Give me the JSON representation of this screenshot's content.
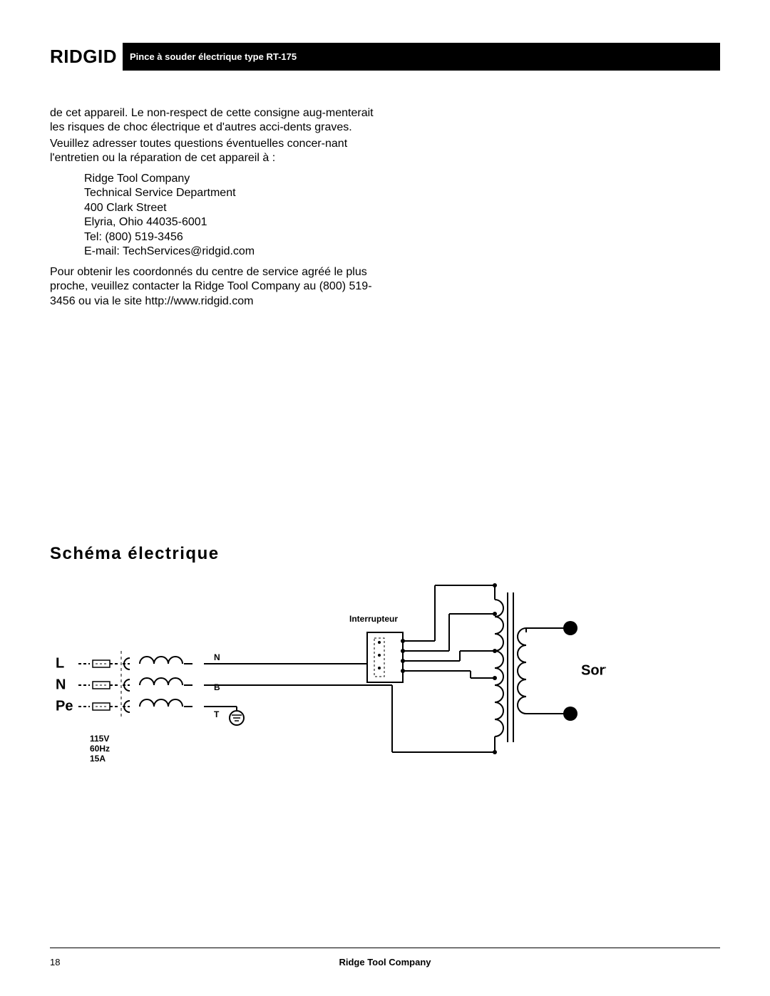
{
  "header": {
    "logo": "RIDGID",
    "title": "Pince à souder électrique type RT-175"
  },
  "body": {
    "para1": "de cet appareil. Le non-respect de cette consigne aug-menterait les risques de choc électrique et d'autres acci-dents graves.",
    "para2": "Veuillez adresser toutes questions éventuelles concer-nant l'entretien ou la réparation de cet appareil à :",
    "contact": {
      "l1": "Ridge Tool Company",
      "l2": "Technical Service Department",
      "l3": "400 Clark Street",
      "l4": "Elyria, Ohio 44035-6001",
      "l5": "Tel: (800) 519-3456",
      "l6": "E-mail: TechServices@ridgid.com"
    },
    "para3": "Pour obtenir les coordonnés du centre de service agréé le plus proche, veuillez contacter la Ridge Tool Company au (800) 519-3456 ou via le site http://www.ridgid.com"
  },
  "diagram": {
    "title": "Schéma électrique",
    "labels": {
      "switch": "Interrupteur",
      "L": "L",
      "N": "N",
      "Pe": "Pe",
      "wire_N": "N",
      "wire_B": "B",
      "wire_T": "T",
      "output": "Sortie",
      "specs_l1": "115V",
      "specs_l2": "60Hz",
      "specs_l3": "15A"
    },
    "style": {
      "stroke": "#000000",
      "stroke_width": 2,
      "font_family": "Arial",
      "title_fontsize": 24,
      "label_fontsize_large": 20,
      "label_fontsize_small": 12,
      "output_fontsize": 20,
      "dot_radius": 3,
      "output_dot_radius": 10,
      "background": "#ffffff"
    }
  },
  "footer": {
    "page_number": "18",
    "company": "Ridge Tool Company"
  }
}
